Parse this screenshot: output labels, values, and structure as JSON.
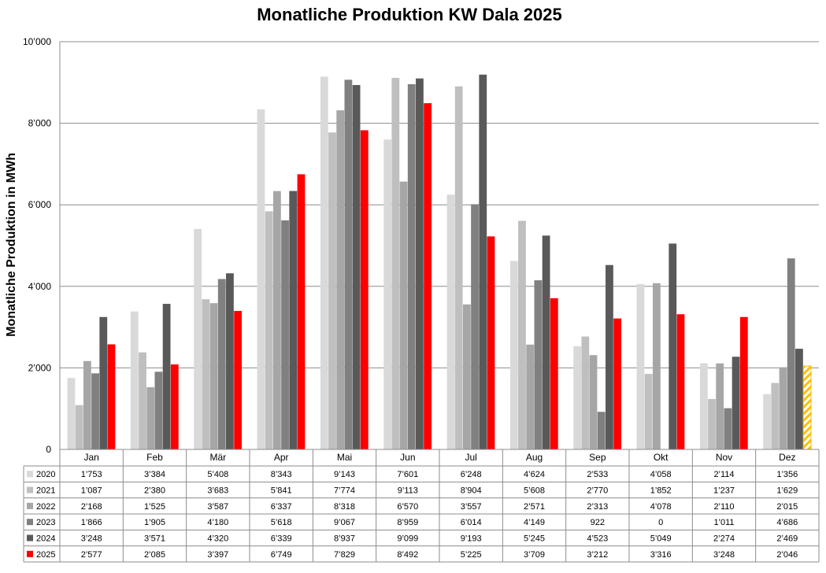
{
  "chart_data": {
    "type": "bar",
    "title": "Monatliche Produktion KW Dala 2025",
    "ylabel": "Monatliche Produktion in MWh",
    "xlabel": "",
    "ylim": [
      0,
      10000
    ],
    "yticks": [
      0,
      2000,
      4000,
      6000,
      8000,
      10000
    ],
    "ytick_labels": [
      "0",
      "2’000",
      "4’000",
      "6’000",
      "8’000",
      "10’000"
    ],
    "grid": true,
    "legend": "table-below",
    "categories": [
      "Jan",
      "Feb",
      "Mär",
      "Apr",
      "Mai",
      "Jun",
      "Jul",
      "Aug",
      "Sep",
      "Okt",
      "Nov",
      "Dez"
    ],
    "series": [
      {
        "name": "2020",
        "color": "#d9d9d9",
        "values": [
          1753,
          3384,
          5408,
          8343,
          9143,
          7601,
          6248,
          4624,
          2533,
          4058,
          2114,
          1356
        ],
        "labels": [
          "1’753",
          "3’384",
          "5’408",
          "8’343",
          "9’143",
          "7’601",
          "6’248",
          "4’624",
          "2’533",
          "4’058",
          "2’114",
          "1’356"
        ]
      },
      {
        "name": "2021",
        "color": "#bfbfbf",
        "values": [
          1087,
          2380,
          3683,
          5841,
          7774,
          9113,
          8904,
          5608,
          2770,
          1852,
          1237,
          1629
        ],
        "labels": [
          "1’087",
          "2’380",
          "3’683",
          "5’841",
          "7’774",
          "9’113",
          "8’904",
          "5’608",
          "2’770",
          "1’852",
          "1’237",
          "1’629"
        ]
      },
      {
        "name": "2022",
        "color": "#a6a6a6",
        "values": [
          2168,
          1525,
          3587,
          6337,
          8318,
          6570,
          3557,
          2571,
          2313,
          4078,
          2110,
          2015
        ],
        "labels": [
          "2’168",
          "1’525",
          "3’587",
          "6’337",
          "8’318",
          "6’570",
          "3’557",
          "2’571",
          "2’313",
          "4’078",
          "2’110",
          "2’015"
        ]
      },
      {
        "name": "2023",
        "color": "#808080",
        "values": [
          1866,
          1905,
          4180,
          5618,
          9067,
          8959,
          6014,
          4149,
          922,
          0,
          1011,
          4686
        ],
        "labels": [
          "1’866",
          "1’905",
          "4’180",
          "5’618",
          "9’067",
          "8’959",
          "6’014",
          "4’149",
          "922",
          "0",
          "1’011",
          "4’686"
        ]
      },
      {
        "name": "2024",
        "color": "#595959",
        "values": [
          3248,
          3571,
          4320,
          6339,
          8937,
          9099,
          9193,
          5245,
          4523,
          5049,
          2274,
          2469
        ],
        "labels": [
          "3’248",
          "3’571",
          "4’320",
          "6’339",
          "8’937",
          "9’099",
          "9’193",
          "5’245",
          "4’523",
          "5’049",
          "2’274",
          "2’469"
        ]
      },
      {
        "name": "2025",
        "color": "#ff0000",
        "values": [
          2577,
          2085,
          3397,
          6749,
          7829,
          8492,
          5225,
          3709,
          3212,
          3316,
          3248,
          2046
        ],
        "labels": [
          "2’577",
          "2’085",
          "3’397",
          "6’749",
          "7’829",
          "8’492",
          "5’225",
          "3’709",
          "3’212",
          "3’316",
          "3’248",
          "2’046"
        ],
        "forecast_index": 11,
        "forecast_color": "#ffc000"
      }
    ]
  }
}
